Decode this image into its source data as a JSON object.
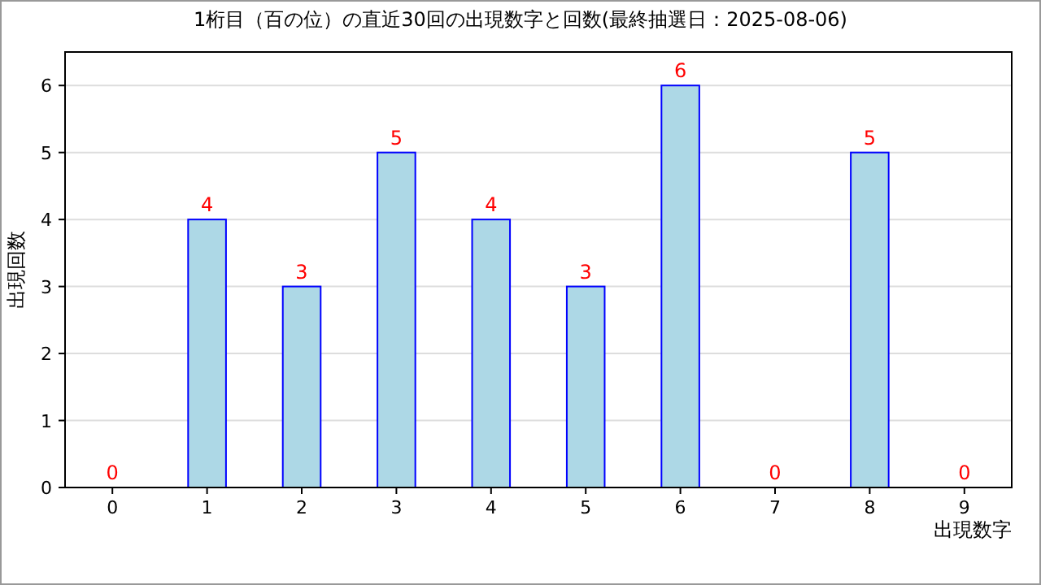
{
  "chart_data": {
    "type": "bar",
    "title": "1桁目（百の位）の直近30回の出現数字と回数(最終抽選日：2025-08-06)",
    "xlabel": "出現数字",
    "ylabel": "出現回数",
    "categories": [
      "0",
      "1",
      "2",
      "3",
      "4",
      "5",
      "6",
      "7",
      "8",
      "9"
    ],
    "series": [
      {
        "color": "#add8e6",
        "values": [
          0,
          4,
          3,
          5,
          4,
          3,
          6,
          0,
          5,
          0
        ]
      }
    ],
    "ylim": [
      0,
      6.5
    ],
    "yticks": [
      0,
      1,
      2,
      3,
      4,
      5,
      6
    ],
    "grid": "y",
    "data_labels": true
  }
}
